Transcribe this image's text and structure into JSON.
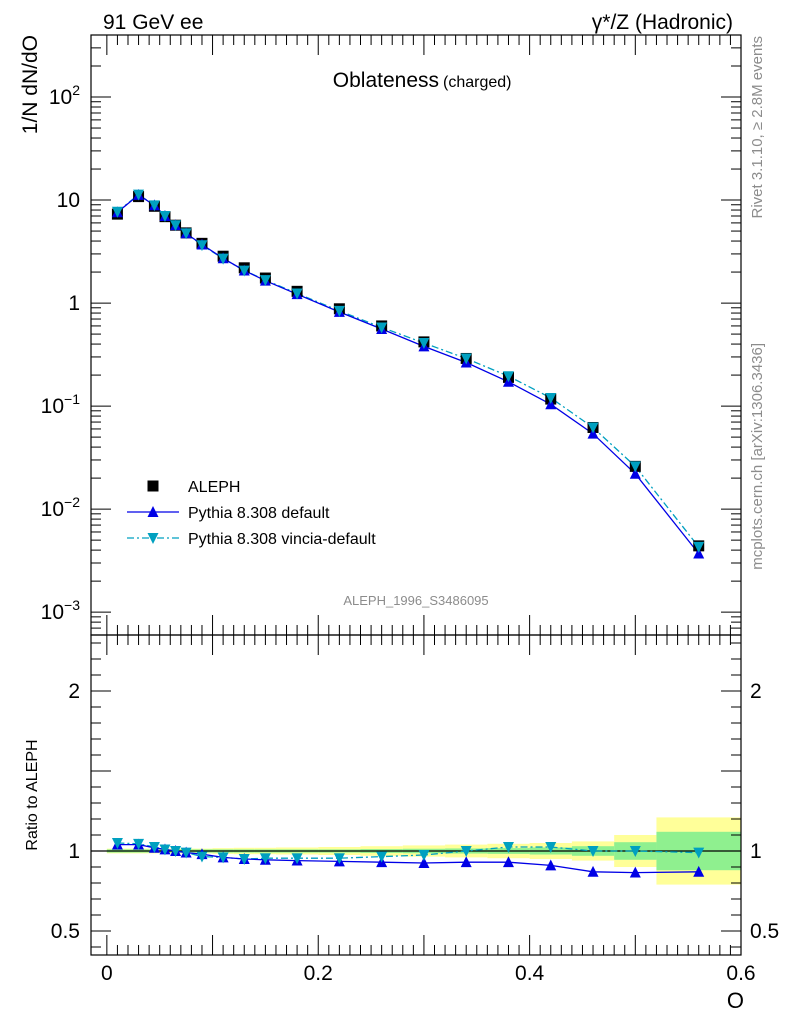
{
  "header": {
    "left": "91 GeV ee",
    "right": "γ*/Z (Hadronic)"
  },
  "side_labels": {
    "rivet": "Rivet 3.1.10, ≥ 2.8M events",
    "mcplots": "mcplots.cern.ch [arXiv:1306.3436]"
  },
  "chart_data": [
    {
      "type": "scatter",
      "panel": "main",
      "title": "Oblateness",
      "subtitle": "(charged)",
      "ylabel": "1/N dN/dO",
      "analysis_tag": "ALEPH_1996_S3486095",
      "yscale": "log",
      "xlim": [
        -0.015,
        0.6
      ],
      "ylim": [
        0.0006,
        400
      ],
      "ytick_labels": [
        "10^-3",
        "10^-2",
        "10^-1",
        "1",
        "10",
        "10^2"
      ],
      "legend": {
        "position": "bottom-left",
        "entries": [
          "ALEPH",
          "Pythia 8.308 default",
          "Pythia 8.308 vincia-default"
        ]
      },
      "colors": {
        "ALEPH": "#000000",
        "default": "#0000e6",
        "vincia": "#00a0c0"
      },
      "series": [
        {
          "name": "ALEPH",
          "x": [
            0.01,
            0.03,
            0.045,
            0.055,
            0.065,
            0.075,
            0.09,
            0.11,
            0.13,
            0.15,
            0.18,
            0.22,
            0.26,
            0.3,
            0.34,
            0.38,
            0.42,
            0.46,
            0.5,
            0.56
          ],
          "y": [
            7.3,
            10.8,
            8.7,
            6.9,
            5.7,
            4.8,
            3.8,
            2.85,
            2.2,
            1.75,
            1.3,
            0.88,
            0.6,
            0.42,
            0.29,
            0.19,
            0.117,
            0.062,
            0.026,
            0.0044
          ]
        },
        {
          "name": "Pythia 8.308 default",
          "x": [
            0.01,
            0.03,
            0.045,
            0.055,
            0.065,
            0.075,
            0.09,
            0.11,
            0.13,
            0.15,
            0.18,
            0.22,
            0.26,
            0.3,
            0.34,
            0.38,
            0.42,
            0.46,
            0.5,
            0.56
          ],
          "y": [
            7.6,
            11.2,
            8.9,
            7.0,
            5.7,
            4.75,
            3.7,
            2.72,
            2.07,
            1.65,
            1.22,
            0.82,
            0.56,
            0.38,
            0.265,
            0.172,
            0.104,
            0.054,
            0.022,
            0.0037
          ]
        },
        {
          "name": "Pythia 8.308 vincia-default",
          "x": [
            0.01,
            0.03,
            0.045,
            0.055,
            0.065,
            0.075,
            0.09,
            0.11,
            0.13,
            0.15,
            0.18,
            0.22,
            0.26,
            0.3,
            0.34,
            0.38,
            0.42,
            0.46,
            0.5,
            0.56
          ],
          "y": [
            7.7,
            11.3,
            8.9,
            7.0,
            5.7,
            4.75,
            3.65,
            2.7,
            2.07,
            1.67,
            1.24,
            0.84,
            0.58,
            0.41,
            0.29,
            0.195,
            0.12,
            0.062,
            0.026,
            0.0043
          ]
        }
      ]
    },
    {
      "type": "line",
      "panel": "ratio",
      "ylabel": "Ratio to ALEPH",
      "xlabel": "O",
      "xlim": [
        -0.015,
        0.6
      ],
      "ylim": [
        0.35,
        2.35
      ],
      "ytick_labels": [
        "0.5",
        "1",
        "2"
      ],
      "xtick_labels": [
        "0",
        "0.2",
        "0.4",
        "0.6"
      ],
      "reference_line": 1,
      "uncertainty_bands": {
        "bins": [
          [
            0.0,
            0.02
          ],
          [
            0.02,
            0.04
          ],
          [
            0.04,
            0.05
          ],
          [
            0.05,
            0.06
          ],
          [
            0.06,
            0.07
          ],
          [
            0.07,
            0.08
          ],
          [
            0.08,
            0.1
          ],
          [
            0.1,
            0.12
          ],
          [
            0.12,
            0.14
          ],
          [
            0.14,
            0.16
          ],
          [
            0.16,
            0.2
          ],
          [
            0.2,
            0.24
          ],
          [
            0.24,
            0.28
          ],
          [
            0.28,
            0.32
          ],
          [
            0.32,
            0.36
          ],
          [
            0.36,
            0.4
          ],
          [
            0.4,
            0.44
          ],
          [
            0.44,
            0.48
          ],
          [
            0.48,
            0.52
          ],
          [
            0.52,
            0.6
          ]
        ],
        "stat_halfwidth": [
          0.01,
          0.01,
          0.01,
          0.01,
          0.01,
          0.01,
          0.01,
          0.01,
          0.01,
          0.01,
          0.01,
          0.01,
          0.012,
          0.014,
          0.016,
          0.018,
          0.022,
          0.03,
          0.055,
          0.12
        ],
        "total_halfwidth": [
          0.015,
          0.015,
          0.015,
          0.015,
          0.015,
          0.015,
          0.015,
          0.018,
          0.02,
          0.02,
          0.022,
          0.025,
          0.03,
          0.035,
          0.04,
          0.045,
          0.05,
          0.06,
          0.1,
          0.21
        ],
        "colors": {
          "stat": "#8ff08f",
          "total": "#ffff99"
        }
      },
      "series": [
        {
          "name": "Pythia 8.308 default",
          "x": [
            0.01,
            0.03,
            0.045,
            0.055,
            0.065,
            0.075,
            0.09,
            0.11,
            0.13,
            0.15,
            0.18,
            0.22,
            0.26,
            0.3,
            0.34,
            0.38,
            0.42,
            0.46,
            0.5,
            0.56
          ],
          "y": [
            1.04,
            1.04,
            1.02,
            1.01,
            1.0,
            0.99,
            0.98,
            0.96,
            0.95,
            0.945,
            0.94,
            0.935,
            0.93,
            0.925,
            0.93,
            0.93,
            0.91,
            0.87,
            0.865,
            0.87
          ]
        },
        {
          "name": "Pythia 8.308 vincia-default",
          "x": [
            0.01,
            0.03,
            0.045,
            0.055,
            0.065,
            0.075,
            0.09,
            0.11,
            0.13,
            0.15,
            0.18,
            0.22,
            0.26,
            0.3,
            0.34,
            0.38,
            0.42,
            0.46,
            0.5,
            0.56
          ],
          "y": [
            1.05,
            1.045,
            1.025,
            1.01,
            1.0,
            0.99,
            0.965,
            0.96,
            0.95,
            0.955,
            0.955,
            0.955,
            0.965,
            0.975,
            1.0,
            1.025,
            1.025,
            1.0,
            1.0,
            0.99
          ]
        }
      ]
    }
  ]
}
